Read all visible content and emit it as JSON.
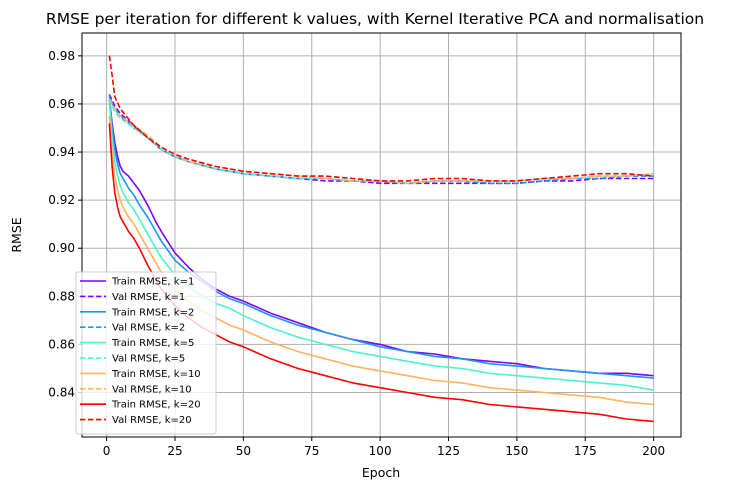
{
  "chart_data": {
    "type": "line",
    "title": "RMSE per iteration for different k values, with Kernel Iterative PCA and normalisation",
    "xlabel": "Epoch",
    "ylabel": "RMSE",
    "xlim": [
      -9,
      210
    ],
    "ylim": [
      0.8215,
      0.9895
    ],
    "xticks": [
      0,
      25,
      50,
      75,
      100,
      125,
      150,
      175,
      200
    ],
    "yticks": [
      0.84,
      0.86,
      0.88,
      0.9,
      0.92,
      0.94,
      0.96,
      0.98
    ],
    "ytick_labels": [
      "0.84",
      "0.86",
      "0.88",
      "0.90",
      "0.92",
      "0.94",
      "0.96",
      "0.98"
    ],
    "grid": true,
    "legend_position": "lower-left",
    "series": [
      {
        "name": "Train RMSE, k=1",
        "color": "#8000ff",
        "style": "solid",
        "x": [
          1,
          2,
          3,
          4,
          5,
          6,
          7,
          8,
          10,
          12,
          15,
          18,
          20,
          25,
          30,
          35,
          40,
          45,
          50,
          60,
          70,
          80,
          90,
          100,
          110,
          120,
          130,
          140,
          150,
          160,
          170,
          180,
          190,
          200
        ],
        "y": [
          0.962,
          0.952,
          0.944,
          0.938,
          0.934,
          0.932,
          0.931,
          0.93,
          0.927,
          0.924,
          0.918,
          0.911,
          0.907,
          0.898,
          0.892,
          0.887,
          0.883,
          0.88,
          0.878,
          0.873,
          0.869,
          0.865,
          0.862,
          0.86,
          0.857,
          0.856,
          0.854,
          0.853,
          0.852,
          0.85,
          0.849,
          0.848,
          0.848,
          0.847
        ]
      },
      {
        "name": "Val RMSE, k=1",
        "color": "#8000ff",
        "style": "dashed",
        "x": [
          1,
          3,
          5,
          10,
          15,
          20,
          25,
          30,
          40,
          50,
          60,
          70,
          80,
          90,
          100,
          110,
          120,
          130,
          140,
          150,
          160,
          170,
          180,
          190,
          200
        ],
        "y": [
          0.964,
          0.959,
          0.956,
          0.951,
          0.946,
          0.941,
          0.938,
          0.936,
          0.933,
          0.931,
          0.93,
          0.929,
          0.928,
          0.928,
          0.927,
          0.927,
          0.927,
          0.927,
          0.927,
          0.927,
          0.928,
          0.928,
          0.929,
          0.929,
          0.929
        ]
      },
      {
        "name": "Train RMSE, k=2",
        "color": "#1996f3",
        "style": "solid",
        "x": [
          1,
          2,
          3,
          4,
          5,
          6,
          7,
          8,
          10,
          12,
          15,
          18,
          20,
          25,
          30,
          35,
          40,
          45,
          50,
          60,
          70,
          80,
          90,
          100,
          110,
          120,
          130,
          140,
          150,
          160,
          170,
          180,
          190,
          200
        ],
        "y": [
          0.964,
          0.95,
          0.941,
          0.935,
          0.931,
          0.929,
          0.927,
          0.925,
          0.922,
          0.918,
          0.913,
          0.907,
          0.903,
          0.895,
          0.89,
          0.886,
          0.882,
          0.879,
          0.877,
          0.872,
          0.868,
          0.865,
          0.862,
          0.859,
          0.857,
          0.855,
          0.854,
          0.852,
          0.851,
          0.85,
          0.849,
          0.848,
          0.847,
          0.846
        ]
      },
      {
        "name": "Val RMSE, k=2",
        "color": "#1996f3",
        "style": "dashed",
        "x": [
          1,
          3,
          5,
          10,
          15,
          20,
          25,
          30,
          40,
          50,
          60,
          70,
          80,
          90,
          100,
          110,
          120,
          130,
          140,
          150,
          160,
          170,
          180,
          190,
          200
        ],
        "y": [
          0.963,
          0.958,
          0.955,
          0.95,
          0.946,
          0.941,
          0.938,
          0.936,
          0.933,
          0.931,
          0.93,
          0.929,
          0.929,
          0.928,
          0.928,
          0.927,
          0.928,
          0.928,
          0.927,
          0.927,
          0.928,
          0.929,
          0.929,
          0.93,
          0.93
        ]
      },
      {
        "name": "Train RMSE, k=5",
        "color": "#4cf2ce",
        "style": "solid",
        "x": [
          1,
          2,
          3,
          4,
          5,
          6,
          7,
          8,
          10,
          12,
          15,
          18,
          20,
          25,
          30,
          35,
          40,
          45,
          50,
          60,
          70,
          80,
          90,
          100,
          110,
          120,
          130,
          140,
          150,
          160,
          170,
          180,
          190,
          200
        ],
        "y": [
          0.961,
          0.946,
          0.936,
          0.93,
          0.926,
          0.923,
          0.921,
          0.919,
          0.916,
          0.912,
          0.906,
          0.9,
          0.896,
          0.889,
          0.884,
          0.88,
          0.877,
          0.875,
          0.872,
          0.867,
          0.863,
          0.86,
          0.857,
          0.855,
          0.853,
          0.851,
          0.85,
          0.848,
          0.847,
          0.846,
          0.845,
          0.844,
          0.843,
          0.841
        ]
      },
      {
        "name": "Val RMSE, k=5",
        "color": "#4cf2ce",
        "style": "dashed",
        "x": [
          1,
          3,
          5,
          10,
          15,
          20,
          25,
          30,
          40,
          50,
          60,
          70,
          80,
          90,
          100,
          110,
          120,
          130,
          140,
          150,
          160,
          170,
          180,
          190,
          200
        ],
        "y": [
          0.962,
          0.957,
          0.954,
          0.95,
          0.946,
          0.941,
          0.938,
          0.936,
          0.933,
          0.931,
          0.93,
          0.929,
          0.929,
          0.928,
          0.928,
          0.927,
          0.928,
          0.928,
          0.928,
          0.928,
          0.929,
          0.929,
          0.93,
          0.93,
          0.931
        ]
      },
      {
        "name": "Train RMSE, k=10",
        "color": "#ffb360",
        "style": "solid",
        "x": [
          1,
          2,
          3,
          4,
          5,
          6,
          7,
          8,
          10,
          12,
          15,
          18,
          20,
          25,
          30,
          35,
          40,
          45,
          50,
          60,
          70,
          80,
          90,
          100,
          110,
          120,
          130,
          140,
          150,
          160,
          170,
          180,
          190,
          200
        ],
        "y": [
          0.955,
          0.94,
          0.93,
          0.924,
          0.92,
          0.917,
          0.915,
          0.913,
          0.91,
          0.906,
          0.9,
          0.894,
          0.89,
          0.883,
          0.878,
          0.874,
          0.871,
          0.868,
          0.866,
          0.861,
          0.857,
          0.854,
          0.851,
          0.849,
          0.847,
          0.845,
          0.844,
          0.842,
          0.841,
          0.84,
          0.839,
          0.838,
          0.836,
          0.835
        ]
      },
      {
        "name": "Val RMSE, k=10",
        "color": "#ffb360",
        "style": "dashed",
        "x": [
          1,
          3,
          5,
          10,
          15,
          20,
          25,
          30,
          40,
          50,
          60,
          70,
          80,
          90,
          100,
          110,
          120,
          130,
          140,
          150,
          160,
          170,
          180,
          190,
          200
        ],
        "y": [
          0.962,
          0.958,
          0.955,
          0.951,
          0.947,
          0.942,
          0.939,
          0.936,
          0.934,
          0.932,
          0.931,
          0.93,
          0.929,
          0.928,
          0.928,
          0.927,
          0.928,
          0.928,
          0.928,
          0.928,
          0.929,
          0.929,
          0.93,
          0.93,
          0.931
        ]
      },
      {
        "name": "Train RMSE, k=20",
        "color": "#ff0000",
        "style": "solid",
        "x": [
          1,
          2,
          3,
          4,
          5,
          6,
          7,
          8,
          10,
          12,
          15,
          18,
          20,
          25,
          30,
          35,
          40,
          45,
          50,
          60,
          70,
          80,
          90,
          100,
          110,
          120,
          130,
          140,
          150,
          160,
          170,
          180,
          190,
          200
        ],
        "y": [
          0.952,
          0.934,
          0.923,
          0.917,
          0.913,
          0.911,
          0.909,
          0.907,
          0.904,
          0.9,
          0.893,
          0.887,
          0.883,
          0.876,
          0.871,
          0.867,
          0.864,
          0.861,
          0.859,
          0.854,
          0.85,
          0.847,
          0.844,
          0.842,
          0.84,
          0.838,
          0.837,
          0.835,
          0.834,
          0.833,
          0.832,
          0.831,
          0.829,
          0.828
        ]
      },
      {
        "name": "Val RMSE, k=20",
        "color": "#ff0000",
        "style": "dashed",
        "x": [
          1,
          2,
          3,
          5,
          10,
          15,
          20,
          25,
          30,
          40,
          50,
          60,
          70,
          80,
          90,
          100,
          110,
          120,
          130,
          140,
          150,
          160,
          170,
          180,
          190,
          200
        ],
        "y": [
          0.98,
          0.972,
          0.963,
          0.958,
          0.951,
          0.946,
          0.942,
          0.939,
          0.937,
          0.934,
          0.932,
          0.931,
          0.93,
          0.93,
          0.929,
          0.928,
          0.928,
          0.929,
          0.929,
          0.928,
          0.928,
          0.929,
          0.93,
          0.931,
          0.931,
          0.93
        ]
      }
    ]
  }
}
